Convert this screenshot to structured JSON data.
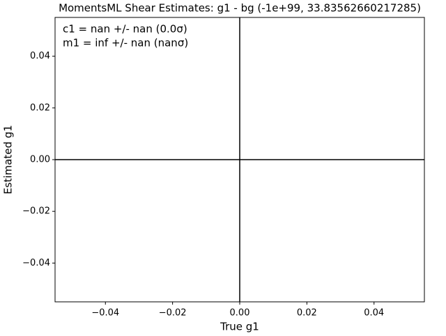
{
  "chart_data": {
    "type": "scatter",
    "title": "MomentsML Shear Estimates: g1  - bg (-1e+99, 33.83562660217285)",
    "xlabel": "True g1",
    "ylabel": "Estimated g1",
    "annotations": [
      "c1 = nan +/- nan (0.0σ)",
      "m1 = inf +/- nan (nanσ)"
    ],
    "x": [],
    "values": [],
    "hlines": [
      0
    ],
    "vlines": [
      0
    ],
    "xlim": [
      -0.055,
      0.055
    ],
    "ylim": [
      -0.055,
      0.055
    ],
    "xticks": [
      {
        "value": -0.04,
        "label": "−0.04"
      },
      {
        "value": -0.02,
        "label": "−0.02"
      },
      {
        "value": 0,
        "label": "0.00"
      },
      0.02,
      0.04
    ],
    "yticks": [
      {
        "value": -0.04,
        "label": "−0.04"
      },
      {
        "value": -0.02,
        "label": "−0.02"
      },
      {
        "value": 0,
        "label": "0.00"
      },
      0.02,
      0.04
    ],
    "line_color": "#000000"
  }
}
